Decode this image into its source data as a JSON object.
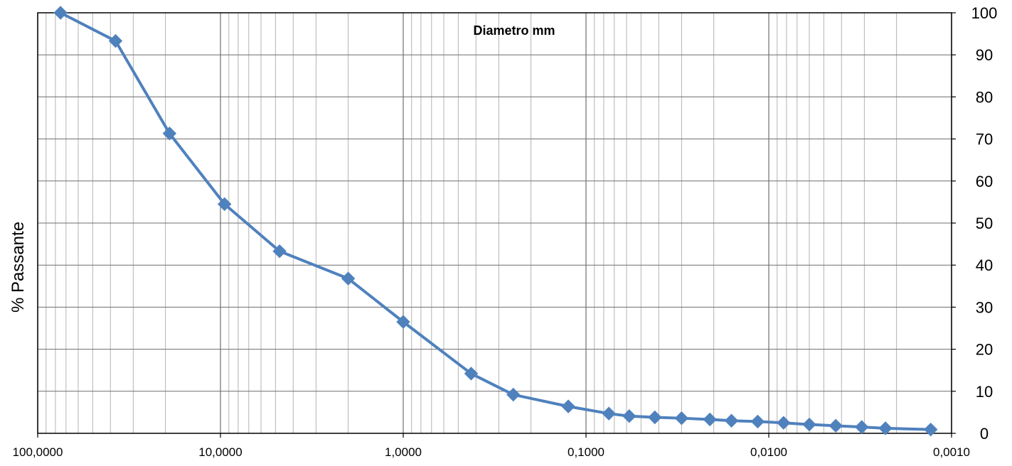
{
  "chart_data": {
    "type": "line",
    "title": "Diametro mm",
    "ylabel": "% Passante",
    "xlabel": "",
    "x_scale": "log",
    "x_reversed": true,
    "xlim": [
      100,
      0.001
    ],
    "ylim": [
      0,
      100
    ],
    "grid": true,
    "y_axis_position": "right",
    "x_tick_labels": [
      "100,0000",
      "10,0000",
      "1,0000",
      "0,1000",
      "0,0100",
      "0,0010"
    ],
    "x_ticks": [
      100,
      10,
      1,
      0.1,
      0.01,
      0.001
    ],
    "y_tick_labels": [
      "0",
      "10",
      "20",
      "30",
      "40",
      "50",
      "60",
      "70",
      "80",
      "90",
      "100"
    ],
    "y_ticks": [
      0,
      10,
      20,
      30,
      40,
      50,
      60,
      70,
      80,
      90,
      100
    ],
    "series": [
      {
        "color": "#4F81BD",
        "marker": "diamond",
        "x": [
          75,
          37.5,
          19,
          9.5,
          4.75,
          2,
          1,
          0.425,
          0.25,
          0.125,
          0.075,
          0.058,
          0.042,
          0.03,
          0.021,
          0.016,
          0.0115,
          0.0083,
          0.006,
          0.0043,
          0.0031,
          0.0023,
          0.0013
        ],
        "y": [
          100,
          93.3,
          71.3,
          54.5,
          43.3,
          36.8,
          26.5,
          14.2,
          9.2,
          6.4,
          4.7,
          4.1,
          3.8,
          3.6,
          3.3,
          3.0,
          2.8,
          2.5,
          2.1,
          1.8,
          1.5,
          1.2,
          0.9
        ]
      }
    ]
  }
}
